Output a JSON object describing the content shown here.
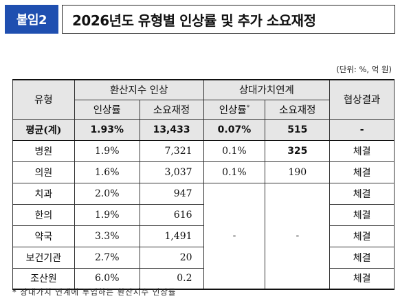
{
  "header": {
    "badge": "붙임2",
    "title": "2026년도 유형별 인상률 및 추가 소요재정"
  },
  "unit_note": "(단위: %, 억 원)",
  "table": {
    "col_type": "유형",
    "group1": "환산지수 인상",
    "group2": "상대가치연계",
    "col_result": "협상결과",
    "sub_rate": "인상률",
    "sub_cost": "소요재정",
    "sub_rate2": "인상률",
    "sub_rate2_mark": "*",
    "sub_cost2": "소요재정",
    "average": {
      "type": "평균(계)",
      "rate": "1.93%",
      "cost": "13,433",
      "rate2": "0.07%",
      "cost2": "515",
      "result": "-"
    },
    "rows": [
      {
        "type": "병원",
        "rate": "1.9%",
        "cost": "7,321",
        "rate2": "0.1%",
        "cost2": "325",
        "result": "체결"
      },
      {
        "type": "의원",
        "rate": "1.6%",
        "cost": "3,037",
        "rate2": "0.1%",
        "cost2": "190",
        "result": "체결"
      },
      {
        "type": "치과",
        "rate": "2.0%",
        "cost": "947",
        "result": "체결"
      },
      {
        "type": "한의",
        "rate": "1.9%",
        "cost": "616",
        "result": "체결"
      },
      {
        "type": "약국",
        "rate": "3.3%",
        "cost": "1,491",
        "result": "체결"
      },
      {
        "type": "보건기관",
        "rate": "2.7%",
        "cost": "20",
        "result": "체결"
      },
      {
        "type": "조산원",
        "rate": "6.0%",
        "cost": "0.2",
        "result": "체결"
      }
    ],
    "merged_rate2": "-",
    "merged_cost2": "-"
  },
  "footnote": "* 상대가치 연계에 투입하는 환산지수 인상률"
}
